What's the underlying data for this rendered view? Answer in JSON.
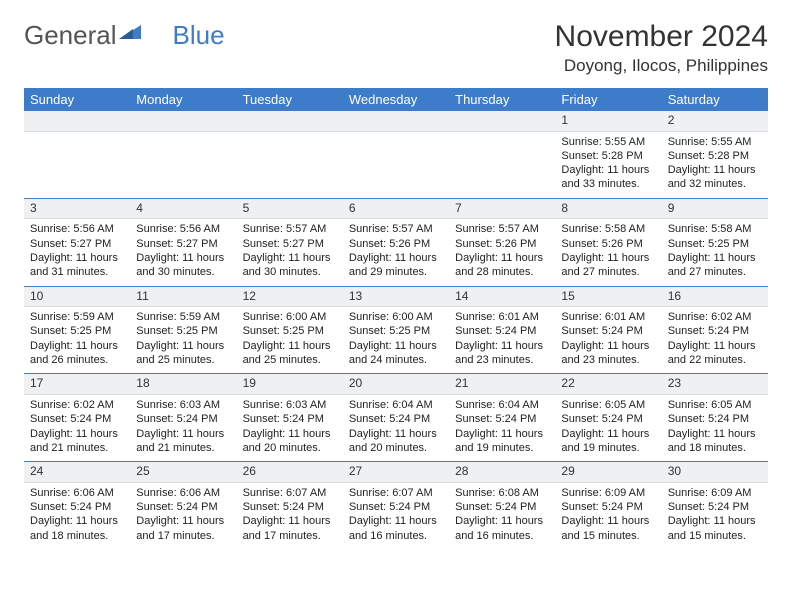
{
  "logo": {
    "text1": "General",
    "text2": "Blue"
  },
  "title": "November 2024",
  "location": "Doyong, Ilocos, Philippines",
  "colors": {
    "header_bg": "#3d7cc9",
    "header_fg": "#ffffff",
    "daynum_bg": "#eef0f2",
    "week_sep": "#3d7cc9",
    "text": "#222222",
    "background": "#ffffff"
  },
  "typography": {
    "title_fontsize": 30,
    "location_fontsize": 17,
    "header_fontsize": 13,
    "cell_fontsize": 11
  },
  "layout": {
    "columns": 7,
    "rows": 5,
    "first_weekday": "Sunday"
  },
  "weekdays": [
    "Sunday",
    "Monday",
    "Tuesday",
    "Wednesday",
    "Thursday",
    "Friday",
    "Saturday"
  ],
  "weeks": [
    [
      null,
      null,
      null,
      null,
      null,
      {
        "n": "1",
        "sunrise": "5:55 AM",
        "sunset": "5:28 PM",
        "dh": "11",
        "dm": "33"
      },
      {
        "n": "2",
        "sunrise": "5:55 AM",
        "sunset": "5:28 PM",
        "dh": "11",
        "dm": "32"
      }
    ],
    [
      {
        "n": "3",
        "sunrise": "5:56 AM",
        "sunset": "5:27 PM",
        "dh": "11",
        "dm": "31"
      },
      {
        "n": "4",
        "sunrise": "5:56 AM",
        "sunset": "5:27 PM",
        "dh": "11",
        "dm": "30"
      },
      {
        "n": "5",
        "sunrise": "5:57 AM",
        "sunset": "5:27 PM",
        "dh": "11",
        "dm": "30"
      },
      {
        "n": "6",
        "sunrise": "5:57 AM",
        "sunset": "5:26 PM",
        "dh": "11",
        "dm": "29"
      },
      {
        "n": "7",
        "sunrise": "5:57 AM",
        "sunset": "5:26 PM",
        "dh": "11",
        "dm": "28"
      },
      {
        "n": "8",
        "sunrise": "5:58 AM",
        "sunset": "5:26 PM",
        "dh": "11",
        "dm": "27"
      },
      {
        "n": "9",
        "sunrise": "5:58 AM",
        "sunset": "5:25 PM",
        "dh": "11",
        "dm": "27"
      }
    ],
    [
      {
        "n": "10",
        "sunrise": "5:59 AM",
        "sunset": "5:25 PM",
        "dh": "11",
        "dm": "26"
      },
      {
        "n": "11",
        "sunrise": "5:59 AM",
        "sunset": "5:25 PM",
        "dh": "11",
        "dm": "25"
      },
      {
        "n": "12",
        "sunrise": "6:00 AM",
        "sunset": "5:25 PM",
        "dh": "11",
        "dm": "25"
      },
      {
        "n": "13",
        "sunrise": "6:00 AM",
        "sunset": "5:25 PM",
        "dh": "11",
        "dm": "24"
      },
      {
        "n": "14",
        "sunrise": "6:01 AM",
        "sunset": "5:24 PM",
        "dh": "11",
        "dm": "23"
      },
      {
        "n": "15",
        "sunrise": "6:01 AM",
        "sunset": "5:24 PM",
        "dh": "11",
        "dm": "23"
      },
      {
        "n": "16",
        "sunrise": "6:02 AM",
        "sunset": "5:24 PM",
        "dh": "11",
        "dm": "22"
      }
    ],
    [
      {
        "n": "17",
        "sunrise": "6:02 AM",
        "sunset": "5:24 PM",
        "dh": "11",
        "dm": "21"
      },
      {
        "n": "18",
        "sunrise": "6:03 AM",
        "sunset": "5:24 PM",
        "dh": "11",
        "dm": "21"
      },
      {
        "n": "19",
        "sunrise": "6:03 AM",
        "sunset": "5:24 PM",
        "dh": "11",
        "dm": "20"
      },
      {
        "n": "20",
        "sunrise": "6:04 AM",
        "sunset": "5:24 PM",
        "dh": "11",
        "dm": "20"
      },
      {
        "n": "21",
        "sunrise": "6:04 AM",
        "sunset": "5:24 PM",
        "dh": "11",
        "dm": "19"
      },
      {
        "n": "22",
        "sunrise": "6:05 AM",
        "sunset": "5:24 PM",
        "dh": "11",
        "dm": "19"
      },
      {
        "n": "23",
        "sunrise": "6:05 AM",
        "sunset": "5:24 PM",
        "dh": "11",
        "dm": "18"
      }
    ],
    [
      {
        "n": "24",
        "sunrise": "6:06 AM",
        "sunset": "5:24 PM",
        "dh": "11",
        "dm": "18"
      },
      {
        "n": "25",
        "sunrise": "6:06 AM",
        "sunset": "5:24 PM",
        "dh": "11",
        "dm": "17"
      },
      {
        "n": "26",
        "sunrise": "6:07 AM",
        "sunset": "5:24 PM",
        "dh": "11",
        "dm": "17"
      },
      {
        "n": "27",
        "sunrise": "6:07 AM",
        "sunset": "5:24 PM",
        "dh": "11",
        "dm": "16"
      },
      {
        "n": "28",
        "sunrise": "6:08 AM",
        "sunset": "5:24 PM",
        "dh": "11",
        "dm": "16"
      },
      {
        "n": "29",
        "sunrise": "6:09 AM",
        "sunset": "5:24 PM",
        "dh": "11",
        "dm": "15"
      },
      {
        "n": "30",
        "sunrise": "6:09 AM",
        "sunset": "5:24 PM",
        "dh": "11",
        "dm": "15"
      }
    ]
  ],
  "labels": {
    "sunrise": "Sunrise:",
    "sunset": "Sunset:",
    "daylight_pre": "Daylight:",
    "daylight_mid": "hours and",
    "daylight_post": "minutes."
  }
}
